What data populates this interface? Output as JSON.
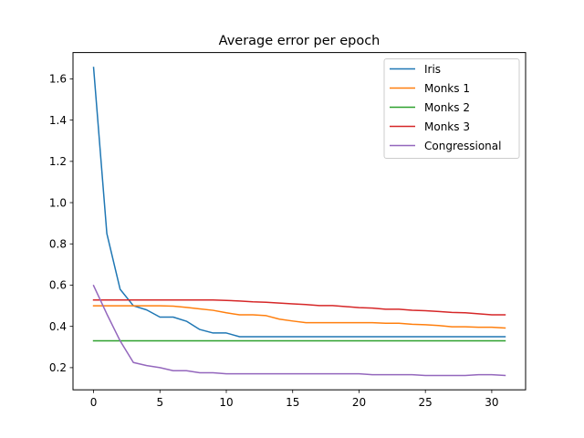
{
  "chart_data": {
    "type": "line",
    "title": "Average error per epoch",
    "xlabel": "",
    "ylabel": "",
    "xlim": [
      -1.55,
      32.55
    ],
    "ylim": [
      0.0925,
      1.7275
    ],
    "xticks": [
      0,
      5,
      10,
      15,
      20,
      25,
      30
    ],
    "yticks": [
      0.2,
      0.4,
      0.6,
      0.8,
      1.0,
      1.2,
      1.4,
      1.6
    ],
    "ytick_labels": [
      "0.2",
      "0.4",
      "0.6",
      "0.8",
      "1.0",
      "1.2",
      "1.4",
      "1.6"
    ],
    "grid": false,
    "legend_position": "top-right",
    "x": [
      0,
      1,
      2,
      3,
      4,
      5,
      6,
      7,
      8,
      9,
      10,
      11,
      12,
      13,
      14,
      15,
      16,
      17,
      18,
      19,
      20,
      21,
      22,
      23,
      24,
      25,
      26,
      27,
      28,
      29,
      30,
      31
    ],
    "series": [
      {
        "name": "Iris",
        "color": "#1f77b4",
        "values": [
          1.655,
          0.85,
          0.58,
          0.5,
          0.48,
          0.445,
          0.445,
          0.425,
          0.385,
          0.368,
          0.368,
          0.35,
          0.35,
          0.35,
          0.35,
          0.35,
          0.35,
          0.35,
          0.35,
          0.35,
          0.35,
          0.35,
          0.35,
          0.35,
          0.35,
          0.35,
          0.35,
          0.35,
          0.35,
          0.35,
          0.35,
          0.35
        ]
      },
      {
        "name": "Monks 1",
        "color": "#ff7f0e",
        "values": [
          0.5,
          0.5,
          0.5,
          0.5,
          0.5,
          0.5,
          0.498,
          0.492,
          0.485,
          0.478,
          0.466,
          0.456,
          0.456,
          0.452,
          0.435,
          0.426,
          0.418,
          0.418,
          0.418,
          0.418,
          0.418,
          0.418,
          0.415,
          0.415,
          0.41,
          0.408,
          0.404,
          0.398,
          0.398,
          0.396,
          0.396,
          0.392
        ]
      },
      {
        "name": "Monks 2",
        "color": "#2ca02c",
        "values": [
          0.33,
          0.33,
          0.33,
          0.33,
          0.33,
          0.33,
          0.33,
          0.33,
          0.33,
          0.33,
          0.33,
          0.33,
          0.33,
          0.33,
          0.33,
          0.33,
          0.33,
          0.33,
          0.33,
          0.33,
          0.33,
          0.33,
          0.33,
          0.33,
          0.33,
          0.33,
          0.33,
          0.33,
          0.33,
          0.33,
          0.33,
          0.33
        ]
      },
      {
        "name": "Monks 3",
        "color": "#d62728",
        "values": [
          0.528,
          0.528,
          0.528,
          0.528,
          0.528,
          0.528,
          0.528,
          0.528,
          0.528,
          0.528,
          0.526,
          0.523,
          0.519,
          0.517,
          0.513,
          0.509,
          0.506,
          0.501,
          0.501,
          0.496,
          0.491,
          0.489,
          0.483,
          0.483,
          0.478,
          0.476,
          0.472,
          0.468,
          0.466,
          0.461,
          0.456,
          0.456
        ]
      },
      {
        "name": "Congressional",
        "color": "#9467bd",
        "values": [
          0.598,
          0.46,
          0.33,
          0.225,
          0.21,
          0.2,
          0.185,
          0.185,
          0.175,
          0.175,
          0.17,
          0.17,
          0.17,
          0.17,
          0.17,
          0.17,
          0.17,
          0.17,
          0.17,
          0.17,
          0.17,
          0.166,
          0.166,
          0.166,
          0.166,
          0.162,
          0.162,
          0.162,
          0.162,
          0.166,
          0.166,
          0.162
        ]
      }
    ]
  }
}
